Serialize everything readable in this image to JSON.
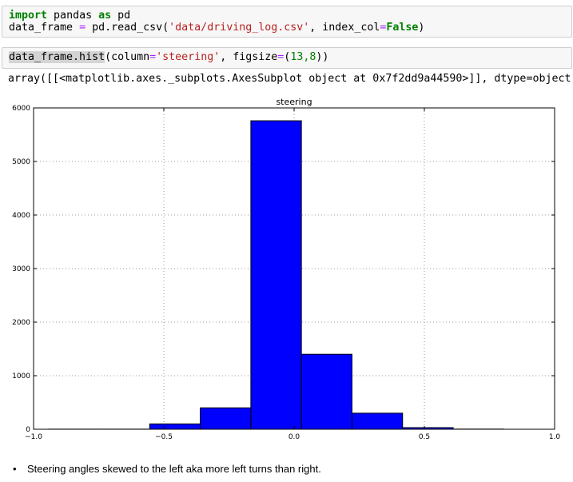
{
  "cell1": {
    "line1": {
      "kw_import": "import",
      "module": " pandas ",
      "kw_as": "as",
      "alias": " pd"
    },
    "line2": {
      "var": "data_frame ",
      "eq": "=",
      "call": " pd.read_csv(",
      "path": "'data/driving_log.csv'",
      "comma": ", index_col",
      "eq2": "=",
      "false_val": "False",
      "close": ")"
    }
  },
  "cell2": {
    "hist_call": "data_frame.hist",
    "open": "(column",
    "eq": "=",
    "col": "'steering'",
    "fig": ", figsize",
    "eq2": "=",
    "paren_open": "(",
    "size": "13,8",
    "close": "))"
  },
  "output": {
    "text": "array([[<matplotlib.axes._subplots.AxesSubplot object at 0x7f2dd9a44590>]], dtype=object)"
  },
  "chart_data": {
    "type": "bar",
    "title": "steering",
    "xlabel": "",
    "ylabel": "",
    "xlim": [
      -1.0,
      1.0
    ],
    "ylim": [
      0,
      6000
    ],
    "xticks": [
      "-1.0",
      "-0.5",
      "0.0",
      "0.5",
      "1.0"
    ],
    "yticks": [
      "0",
      "1000",
      "2000",
      "3000",
      "4000",
      "5000",
      "6000"
    ],
    "grid": true,
    "bar_color": "#0000ff",
    "bin_edges": [
      -0.9426954,
      -0.7485,
      -0.5543,
      -0.3602,
      -0.166,
      0.0281,
      0.2223,
      0.4164,
      0.6106,
      0.8047,
      0.9989
    ],
    "values": [
      2,
      2,
      100,
      400,
      5760,
      1400,
      300,
      30,
      3,
      0
    ]
  },
  "notes": {
    "bullet1": "Steering angles skewed to the left aka more left turns than right."
  }
}
